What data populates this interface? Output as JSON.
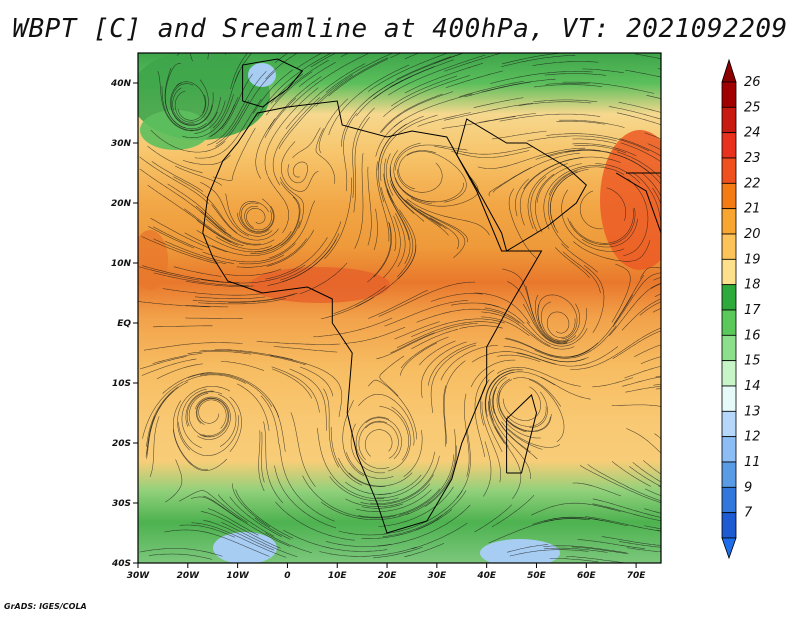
{
  "title": "WBPT [C] and Sreamline at 400hPa, VT: 2021092209",
  "credit": "GrADS: IGES/COLA",
  "map": {
    "lon_range": [
      -30,
      75
    ],
    "lat_range": [
      -40,
      45
    ],
    "lat_ticks": [
      {
        "value": 40,
        "label": "40N"
      },
      {
        "value": 30,
        "label": "30N"
      },
      {
        "value": 20,
        "label": "20N"
      },
      {
        "value": 10,
        "label": "10N"
      },
      {
        "value": 0,
        "label": "EQ"
      },
      {
        "value": -10,
        "label": "10S"
      },
      {
        "value": -20,
        "label": "20S"
      },
      {
        "value": -30,
        "label": "30S"
      },
      {
        "value": -40,
        "label": "40S"
      }
    ],
    "lon_ticks": [
      {
        "value": -30,
        "label": "30W"
      },
      {
        "value": -20,
        "label": "20W"
      },
      {
        "value": -10,
        "label": "10W"
      },
      {
        "value": 0,
        "label": "0"
      },
      {
        "value": 10,
        "label": "10E"
      },
      {
        "value": 20,
        "label": "20E"
      },
      {
        "value": 30,
        "label": "30E"
      },
      {
        "value": 40,
        "label": "40E"
      },
      {
        "value": 50,
        "label": "50E"
      },
      {
        "value": 60,
        "label": "60E"
      },
      {
        "value": 70,
        "label": "70E"
      }
    ]
  },
  "colorbar": {
    "levels": [
      "26",
      "25",
      "24",
      "23",
      "22",
      "21",
      "20",
      "19",
      "18",
      "17",
      "16",
      "15",
      "14",
      "13",
      "12",
      "11",
      "9",
      "7"
    ],
    "colors": [
      "#a00000",
      "#c81a10",
      "#e8321e",
      "#f0501e",
      "#f57c14",
      "#f8a532",
      "#fbc35a",
      "#fde08c",
      "#2eaa3c",
      "#5ac85a",
      "#8ce08c",
      "#c8f5c8",
      "#e6fafa",
      "#b4d7fa",
      "#8cbef5",
      "#5a9be6",
      "#3278dc",
      "#1e5ad2"
    ]
  }
}
